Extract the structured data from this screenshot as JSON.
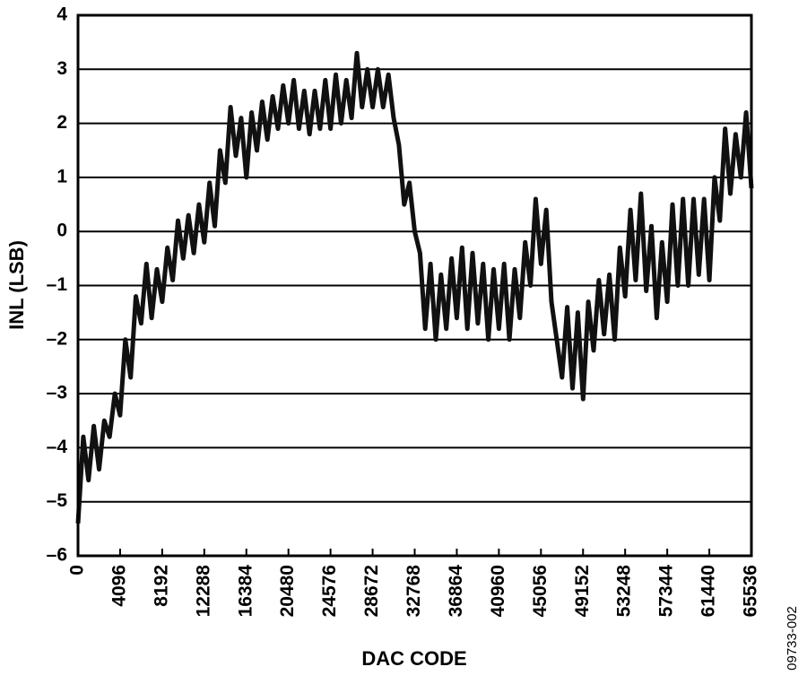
{
  "chart_data": {
    "type": "line",
    "x_label": "DAC CODE",
    "y_label": "INL (LSB)",
    "annotation": "09733-002",
    "xlim": [
      0,
      65536
    ],
    "xticks": [
      0,
      4096,
      8192,
      12288,
      16384,
      20480,
      24576,
      28672,
      32768,
      36864,
      40960,
      45056,
      49152,
      53248,
      57344,
      61440,
      65536
    ],
    "ylim": [
      -6,
      4
    ],
    "yticks": [
      {
        "value": -6,
        "label": "–6"
      },
      {
        "value": -5,
        "label": "–5"
      },
      {
        "value": -4,
        "label": "–4"
      },
      {
        "value": -3,
        "label": "–3"
      },
      {
        "value": -2,
        "label": "–2"
      },
      {
        "value": -1,
        "label": "–1"
      },
      0,
      1,
      2,
      3,
      4
    ],
    "grid": true,
    "series": [
      {
        "color": "#111111",
        "x": [
          0,
          512,
          1024,
          1536,
          2048,
          2560,
          3072,
          3584,
          4096,
          4608,
          5120,
          5632,
          6144,
          6656,
          7168,
          7680,
          8192,
          8704,
          9216,
          9728,
          10240,
          10752,
          11264,
          11776,
          12288,
          12800,
          13312,
          13824,
          14336,
          14848,
          15360,
          15872,
          16384,
          16896,
          17408,
          17920,
          18432,
          18944,
          19456,
          19968,
          20480,
          20992,
          21504,
          22016,
          22528,
          23040,
          23552,
          24064,
          24576,
          25088,
          25600,
          26112,
          26624,
          27136,
          27648,
          28160,
          28672,
          29184,
          29696,
          30208,
          30720,
          31232,
          31744,
          32256,
          32768,
          33280,
          33792,
          34304,
          34816,
          35328,
          35840,
          36352,
          36864,
          37376,
          37888,
          38400,
          38912,
          39424,
          39936,
          40448,
          40960,
          41472,
          41984,
          42496,
          43008,
          43520,
          44032,
          44544,
          45056,
          45568,
          46080,
          46592,
          47104,
          47616,
          48128,
          48640,
          49152,
          49664,
          50176,
          50688,
          51200,
          51712,
          52224,
          52736,
          53248,
          53760,
          54272,
          54784,
          55296,
          55808,
          56320,
          56832,
          57344,
          57856,
          58368,
          58880,
          59392,
          59904,
          60416,
          60928,
          61440,
          61952,
          62464,
          62976,
          63488,
          64000,
          64512,
          65024,
          65536
        ],
        "values": [
          -5.4,
          -3.8,
          -4.6,
          -3.6,
          -4.4,
          -3.5,
          -3.8,
          -3.0,
          -3.4,
          -2.0,
          -2.7,
          -1.2,
          -1.7,
          -0.6,
          -1.6,
          -0.7,
          -1.3,
          -0.3,
          -0.9,
          0.2,
          -0.5,
          0.3,
          -0.4,
          0.5,
          -0.2,
          0.9,
          0.1,
          1.5,
          0.9,
          2.3,
          1.4,
          2.1,
          1.0,
          2.2,
          1.5,
          2.4,
          1.7,
          2.5,
          1.9,
          2.7,
          2.0,
          2.8,
          1.9,
          2.6,
          1.8,
          2.6,
          1.9,
          2.8,
          1.9,
          2.9,
          2.0,
          2.8,
          2.1,
          3.3,
          2.3,
          3.0,
          2.3,
          3.0,
          2.3,
          2.9,
          2.1,
          1.6,
          0.5,
          0.9,
          0.0,
          -0.4,
          -1.8,
          -0.6,
          -2.0,
          -0.8,
          -1.8,
          -0.5,
          -1.6,
          -0.3,
          -1.8,
          -0.4,
          -1.7,
          -0.6,
          -2.0,
          -0.7,
          -1.8,
          -0.6,
          -2.0,
          -0.7,
          -1.6,
          -0.2,
          -1.0,
          0.6,
          -0.6,
          0.4,
          -1.3,
          -2.0,
          -2.7,
          -1.4,
          -2.9,
          -1.5,
          -3.1,
          -1.3,
          -2.2,
          -0.9,
          -1.9,
          -0.8,
          -2.0,
          -0.3,
          -1.2,
          0.4,
          -0.9,
          0.7,
          -1.1,
          0.1,
          -1.6,
          -0.2,
          -1.3,
          0.5,
          -1.0,
          0.6,
          -1.0,
          0.6,
          -0.8,
          0.6,
          -0.9,
          1.0,
          0.2,
          1.9,
          0.7,
          1.8,
          1.0,
          2.2,
          0.8
        ]
      }
    ]
  }
}
